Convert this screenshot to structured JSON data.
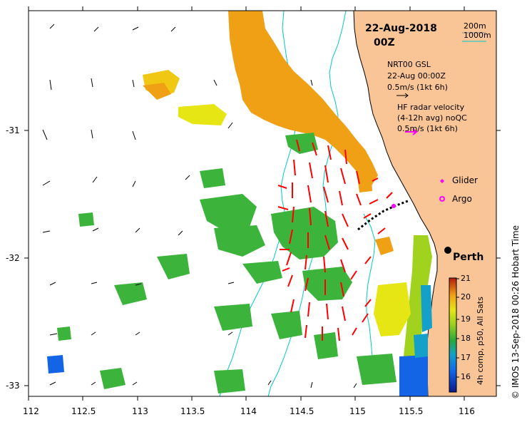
{
  "header": {
    "date": "22-Aug-2018",
    "hour": "00Z"
  },
  "depth_legend": {
    "shallow": "200m",
    "deep": "1000m",
    "shallow_color": "#8c8c8c",
    "deep_color": "#00c8c8"
  },
  "wind_legend": {
    "source": "NRT00 GSL",
    "time": "22-Aug 00:00Z",
    "scale": "0.5m/s (1kt 6h)"
  },
  "radar_legend": {
    "title": "HF radar velocity",
    "subtitle": "(4-12h avg) noQC",
    "scale": "0.5m/s (1kt 6h)",
    "arrow_color": "#ff00ff",
    "current_color": "#ff0000"
  },
  "markers": {
    "glider": "Glider",
    "argo": "Argo",
    "city": "Perth",
    "marker_color": "#ff00ff"
  },
  "colorbar": {
    "title": "4h comp, p50, All Sats",
    "ticks": [
      "21",
      "20",
      "19",
      "18",
      "17",
      "16"
    ]
  },
  "credit": "© IMOS 13-Sep-2018 00:26 Hobart Time",
  "axes": {
    "x_ticks": [
      "112",
      "112.5",
      "113",
      "113.5",
      "114",
      "114.5",
      "115",
      "115.5",
      "116"
    ],
    "y_ticks": [
      "-31",
      "-32",
      "-33"
    ]
  },
  "colors": {
    "land": "#fac596",
    "ocean": "#ffffff"
  }
}
